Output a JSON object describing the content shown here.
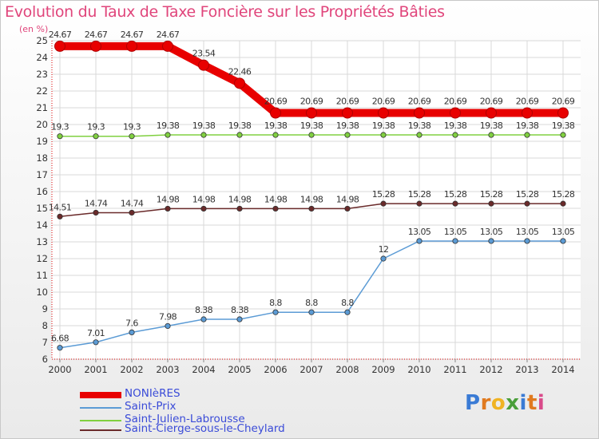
{
  "chart_data": {
    "type": "line",
    "title": "Evolution du Taux de Taxe Foncière sur les Propriétés Bâties",
    "ylabel": "(en %)",
    "xlabel": "",
    "ylim": [
      6,
      25
    ],
    "yticks": [
      6,
      7,
      8,
      9,
      10,
      11,
      12,
      13,
      14,
      15,
      16,
      17,
      18,
      19,
      20,
      21,
      22,
      23,
      24,
      25
    ],
    "categories": [
      "2000",
      "2001",
      "2002",
      "2003",
      "2004",
      "2005",
      "2006",
      "2007",
      "2008",
      "2009",
      "2010",
      "2011",
      "2012",
      "2013",
      "2014"
    ],
    "series": [
      {
        "name": "NONIèRES",
        "color": "#e80000",
        "values": [
          24.67,
          24.67,
          24.67,
          24.67,
          23.54,
          22.46,
          20.69,
          20.69,
          20.69,
          20.69,
          20.69,
          20.69,
          20.69,
          20.69,
          20.69
        ],
        "labels": [
          "24.67",
          "24.67",
          "24.67",
          "24.67",
          "23.54",
          "22.46",
          "20.69",
          "20.69",
          "20.69",
          "20.69",
          "20.69",
          "20.69",
          "20.69",
          "20.69",
          "20.69"
        ]
      },
      {
        "name": "Saint-Prix",
        "color": "#5b9bd5",
        "values": [
          6.68,
          7.01,
          7.6,
          7.98,
          8.38,
          8.38,
          8.8,
          8.8,
          8.8,
          12,
          13.05,
          13.05,
          13.05,
          13.05,
          13.05
        ],
        "labels": [
          "6.68",
          "7.01",
          "7.6",
          "7.98",
          "8.38",
          "8.38",
          "8.8",
          "8.8",
          "8.8",
          "12",
          "13.05",
          "13.05",
          "13.05",
          "13.05",
          "13.05"
        ]
      },
      {
        "name": "Saint-Julien-Labrousse",
        "color": "#80d040",
        "values": [
          19.3,
          19.3,
          19.3,
          19.38,
          19.38,
          19.38,
          19.38,
          19.38,
          19.38,
          19.38,
          19.38,
          19.38,
          19.38,
          19.38,
          19.38
        ],
        "labels": [
          "19.3",
          "19.3",
          "19.3",
          "19.38",
          "19.38",
          "19.38",
          "19.38",
          "19.38",
          "19.38",
          "19.38",
          "19.38",
          "19.38",
          "19.38",
          "19.38",
          "19.38"
        ]
      },
      {
        "name": "Saint-Cierge-sous-le-Cheylard",
        "color": "#6a2a2a",
        "values": [
          14.51,
          14.74,
          14.74,
          14.98,
          14.98,
          14.98,
          14.98,
          14.98,
          14.98,
          15.28,
          15.28,
          15.28,
          15.28,
          15.28,
          15.28
        ],
        "labels": [
          "14.51",
          "14.74",
          "14.74",
          "14.98",
          "14.98",
          "14.98",
          "14.98",
          "14.98",
          "14.98",
          "15.28",
          "15.28",
          "15.28",
          "15.28",
          "15.28",
          "15.28"
        ]
      }
    ],
    "legend_position": "bottom-left"
  },
  "logo": {
    "letters": [
      "P",
      "r",
      "o",
      "x",
      "i",
      "t",
      "i"
    ],
    "colors": [
      "#3a7bd5",
      "#e07a1f",
      "#f0b323",
      "#4a9f3a",
      "#3a7bd5",
      "#e07a1f",
      "#d94a8a"
    ]
  }
}
